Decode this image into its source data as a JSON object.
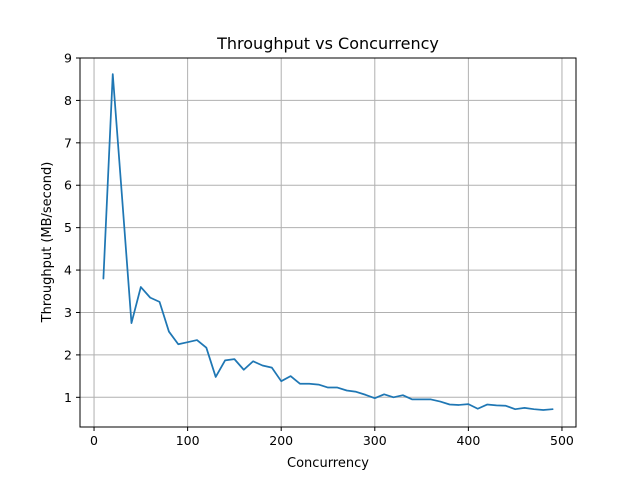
{
  "chart_data": {
    "type": "line",
    "title": "Throughput vs Concurrency",
    "xlabel": "Concurrency",
    "ylabel": "Throughput (MB/second)",
    "xlim": [
      -15,
      515
    ],
    "ylim": [
      0.3,
      9.0
    ],
    "grid": true,
    "xticks": [
      0,
      100,
      200,
      300,
      400,
      500
    ],
    "yticks": [
      1,
      2,
      3,
      4,
      5,
      6,
      7,
      8,
      9
    ],
    "series": [
      {
        "color": "#1f77b4",
        "x": [
          10,
          20,
          30,
          40,
          50,
          60,
          70,
          80,
          90,
          100,
          110,
          120,
          130,
          140,
          150,
          160,
          170,
          180,
          190,
          200,
          210,
          220,
          230,
          240,
          250,
          260,
          270,
          280,
          290,
          300,
          310,
          320,
          330,
          340,
          350,
          360,
          370,
          380,
          390,
          400,
          410,
          420,
          430,
          440,
          450,
          460,
          470,
          480,
          490
        ],
        "y": [
          3.8,
          8.62,
          5.7,
          2.75,
          3.6,
          3.35,
          3.25,
          2.55,
          2.25,
          2.3,
          2.35,
          2.17,
          1.48,
          1.87,
          1.9,
          1.65,
          1.85,
          1.75,
          1.7,
          1.38,
          1.5,
          1.32,
          1.32,
          1.3,
          1.23,
          1.23,
          1.16,
          1.13,
          1.06,
          0.98,
          1.07,
          1.0,
          1.05,
          0.95,
          0.95,
          0.95,
          0.9,
          0.83,
          0.82,
          0.84,
          0.73,
          0.83,
          0.81,
          0.8,
          0.72,
          0.75,
          0.72,
          0.7,
          0.72
        ]
      }
    ]
  }
}
